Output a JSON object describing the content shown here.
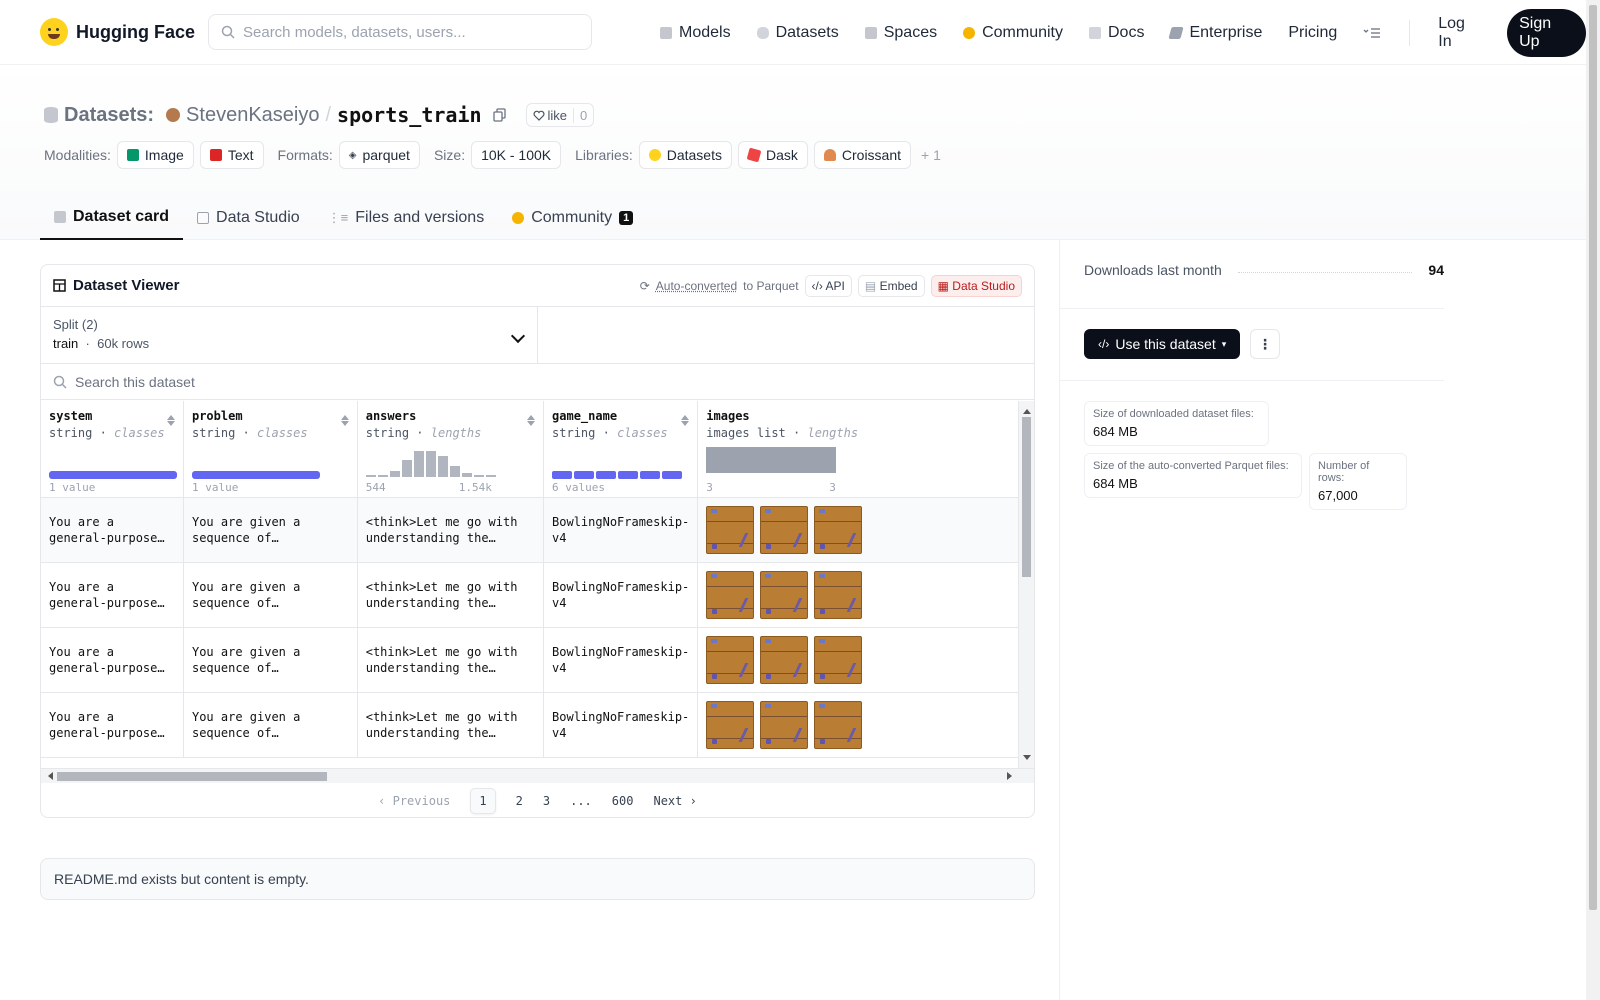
{
  "header": {
    "brand": "Hugging Face",
    "search_placeholder": "Search models, datasets, users...",
    "nav": [
      {
        "label": "Models",
        "icon": "cube-icon",
        "color": "#9ca3af"
      },
      {
        "label": "Datasets",
        "icon": "database-icon",
        "color": "#9ca3af"
      },
      {
        "label": "Spaces",
        "icon": "grid-icon",
        "color": "#9ca3af"
      },
      {
        "label": "Community",
        "icon": "community-icon",
        "color": "#f5b400"
      },
      {
        "label": "Docs",
        "icon": "book-icon",
        "color": "#9ca3af"
      },
      {
        "label": "Enterprise",
        "icon": "enterprise-icon",
        "color": "#6b7280"
      },
      {
        "label": "Pricing"
      }
    ],
    "login": "Log In",
    "signup": "Sign Up"
  },
  "dataset": {
    "section": "Datasets:",
    "owner": "StevenKaseiyo",
    "separator": "/",
    "name": "sports_train",
    "like_label": "like",
    "like_count": "0"
  },
  "meta": {
    "modalities_label": "Modalities:",
    "modalities": [
      {
        "label": "Image",
        "color": "#059669"
      },
      {
        "label": "Text",
        "color": "#dc2626"
      }
    ],
    "formats_label": "Formats:",
    "formats": [
      "parquet"
    ],
    "size_label": "Size:",
    "size": "10K - 100K",
    "libraries_label": "Libraries:",
    "libraries": [
      {
        "label": "Datasets",
        "color": "#ffd21e"
      },
      {
        "label": "Dask",
        "color": "#ef4444"
      },
      {
        "label": "Croissant",
        "color": "#e08a4f"
      }
    ],
    "more": "+ 1"
  },
  "tabs": [
    {
      "label": "Dataset card",
      "icon": "cube-icon"
    },
    {
      "label": "Data Studio",
      "icon": "table-icon"
    },
    {
      "label": "Files and versions",
      "icon": "files-icon"
    },
    {
      "label": "Community",
      "icon": "community-icon",
      "badge": "1"
    }
  ],
  "viewer": {
    "title": "Dataset Viewer",
    "auto_converted": "Auto-converted",
    "to_parquet": "to Parquet",
    "api": "API",
    "embed": "Embed",
    "data_studio": "Data Studio",
    "split_label": "Split (2)",
    "split_value": "train",
    "split_rows": "60k rows",
    "search_placeholder": "Search this dataset",
    "columns": [
      {
        "name": "system",
        "type": "string",
        "stat": "classes",
        "lbl1": "1 value",
        "fill": 1.0
      },
      {
        "name": "problem",
        "type": "string",
        "stat": "classes",
        "lbl1": "1 value",
        "fill": 1.0
      },
      {
        "name": "answers",
        "type": "string",
        "stat": "lengths",
        "lbl1": "544",
        "lbl2": "1.54k",
        "hist": [
          0.03,
          0.03,
          0.2,
          0.55,
          0.85,
          0.85,
          0.7,
          0.35,
          0.12,
          0.04,
          0.03
        ]
      },
      {
        "name": "game_name",
        "type": "string",
        "stat": "classes",
        "lbl1": "6 values",
        "segments": 6
      },
      {
        "name": "images",
        "type": "images list",
        "stat": "lengths",
        "lbl1": "3",
        "lbl2": "3"
      }
    ],
    "rows": [
      {
        "system": "You are a general-purpose game agent...",
        "problem": "You are given a sequence of consecutive...",
        "answers": "<think>Let me go with understanding the current...",
        "game_name": "BowlingNoFrameskip-v4",
        "images": 3
      },
      {
        "system": "You are a general-purpose game agent...",
        "problem": "You are given a sequence of consecutive...",
        "answers": "<think>Let me go with understanding the current...",
        "game_name": "BowlingNoFrameskip-v4",
        "images": 3
      },
      {
        "system": "You are a general-purpose game agent...",
        "problem": "You are given a sequence of consecutive...",
        "answers": "<think>Let me go with understanding the current...",
        "game_name": "BowlingNoFrameskip-v4",
        "images": 3
      },
      {
        "system": "You are a general-purpose game agent...",
        "problem": "You are given a sequence of consecutive...",
        "answers": "<think>Let me go with understanding the current...",
        "game_name": "BowlingNoFrameskip-v4",
        "images": 3
      }
    ],
    "pager": {
      "previous": "Previous",
      "pages": [
        "1",
        "2",
        "3",
        "...",
        "600"
      ],
      "current": "1",
      "next": "Next"
    }
  },
  "readme": "README.md exists but content is empty.",
  "sidebar": {
    "downloads_label": "Downloads last month",
    "downloads_value": "94",
    "use_button": "Use this dataset",
    "more": "⋮",
    "dl_size_label": "Size of downloaded dataset files:",
    "dl_size": "684 MB",
    "parquet_size_label": "Size of the auto-converted Parquet files:",
    "parquet_size": "684 MB",
    "rows_label": "Number of rows:",
    "rows": "67,000"
  }
}
